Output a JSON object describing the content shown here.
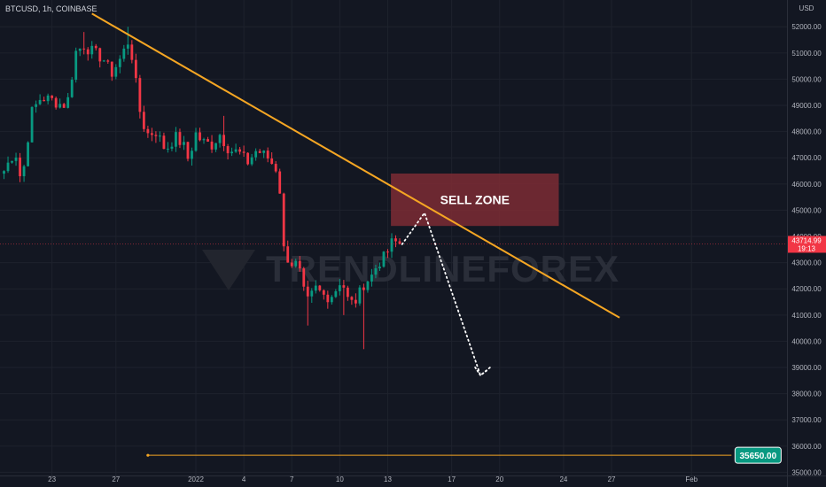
{
  "header": {
    "symbol": "BTCUSD",
    "interval": "1h",
    "exchange": "COINBASE",
    "label": "BTCUSD, 1h, COINBASE"
  },
  "watermark": {
    "text": "TRENDLINEFOREX"
  },
  "current_price": {
    "value": "43714.99",
    "countdown": "19:13",
    "color": "#f23645"
  },
  "annotations": {
    "sell_zone_label": "SELL ZONE",
    "sell_zone_color": "#7d2b34",
    "trendline_color": "#f5a623",
    "level_value": "35650.00",
    "level_color": "#f5a623",
    "level_tag_color": "#089981"
  },
  "chart_data": {
    "type": "candlestick",
    "y_unit": "USD",
    "ylim": [
      34700,
      52700
    ],
    "y_ticks": [
      "52000.00",
      "51000.00",
      "50000.00",
      "49000.00",
      "48000.00",
      "47000.00",
      "46000.00",
      "45000.00",
      "44000.00",
      "43000.00",
      "42000.00",
      "41000.00",
      "40000.00",
      "39000.00",
      "38000.00",
      "37000.00",
      "36000.00",
      "35000.00"
    ],
    "x_ticks": [
      {
        "label": "23",
        "day": -9
      },
      {
        "label": "27",
        "day": -5
      },
      {
        "label": "2022",
        "day": 0
      },
      {
        "label": "4",
        "day": 3
      },
      {
        "label": "7",
        "day": 6
      },
      {
        "label": "10",
        "day": 9
      },
      {
        "label": "13",
        "day": 12
      },
      {
        "label": "17",
        "day": 16
      },
      {
        "label": "20",
        "day": 19
      },
      {
        "label": "24",
        "day": 23
      },
      {
        "label": "27",
        "day": 26
      },
      {
        "label": "Feb",
        "day": 31
      }
    ],
    "price_path": [
      [
        -12.0,
        46500
      ],
      [
        -11.3,
        47300
      ],
      [
        -10.9,
        46000
      ],
      [
        -10.3,
        48700
      ],
      [
        -9.7,
        49300
      ],
      [
        -9.0,
        49200
      ],
      [
        -8.3,
        49000
      ],
      [
        -7.9,
        49300
      ],
      [
        -7.6,
        51000
      ],
      [
        -7.0,
        51300
      ],
      [
        -6.4,
        51000
      ],
      [
        -5.8,
        50800
      ],
      [
        -5.3,
        50200
      ],
      [
        -4.7,
        50800
      ],
      [
        -4.2,
        51500
      ],
      [
        -3.9,
        50600
      ],
      [
        -3.6,
        49000
      ],
      [
        -3.1,
        47900
      ],
      [
        -2.5,
        48000
      ],
      [
        -1.9,
        47300
      ],
      [
        -1.3,
        47800
      ],
      [
        -0.8,
        47500
      ],
      [
        -0.4,
        46800
      ],
      [
        -0.1,
        48000
      ],
      [
        0.4,
        47600
      ],
      [
        1.0,
        47500
      ],
      [
        1.5,
        47900
      ],
      [
        2.1,
        47300
      ],
      [
        2.7,
        47200
      ],
      [
        3.2,
        46800
      ],
      [
        3.8,
        47300
      ],
      [
        4.5,
        47000
      ],
      [
        5.0,
        46600
      ],
      [
        5.3,
        45600
      ],
      [
        5.5,
        43500
      ],
      [
        5.9,
        43000
      ],
      [
        6.4,
        42900
      ],
      [
        6.9,
        41400
      ],
      [
        7.5,
        42000
      ],
      [
        8.1,
        41700
      ],
      [
        8.6,
        41800
      ],
      [
        9.1,
        42400
      ],
      [
        9.6,
        41400
      ],
      [
        10.1,
        41600
      ],
      [
        10.5,
        42200
      ],
      [
        11.0,
        42500
      ],
      [
        11.4,
        43000
      ],
      [
        11.8,
        43200
      ],
      [
        12.3,
        43800
      ],
      [
        12.9,
        43714.99
      ]
    ],
    "spike_lows": [
      [
        9.3,
        41000
      ],
      [
        10.6,
        39700
      ],
      [
        7.0,
        40600
      ]
    ],
    "spike_highs": [
      [
        -4.2,
        52000
      ],
      [
        1.8,
        48600
      ],
      [
        -7.0,
        51800
      ]
    ],
    "trendline": [
      [
        -6.5,
        52500
      ],
      [
        26.5,
        40900
      ]
    ],
    "sell_zone": {
      "x0": 12.2,
      "x1": 22.7,
      "y0": 44400,
      "y1": 46400
    },
    "projection": [
      [
        12.9,
        43700
      ],
      [
        14.3,
        44900
      ],
      [
        17.8,
        38700
      ],
      [
        18.4,
        39000
      ]
    ],
    "horizontal_level": {
      "x0": -3.0,
      "x1": 33.5,
      "y": 35650
    }
  }
}
